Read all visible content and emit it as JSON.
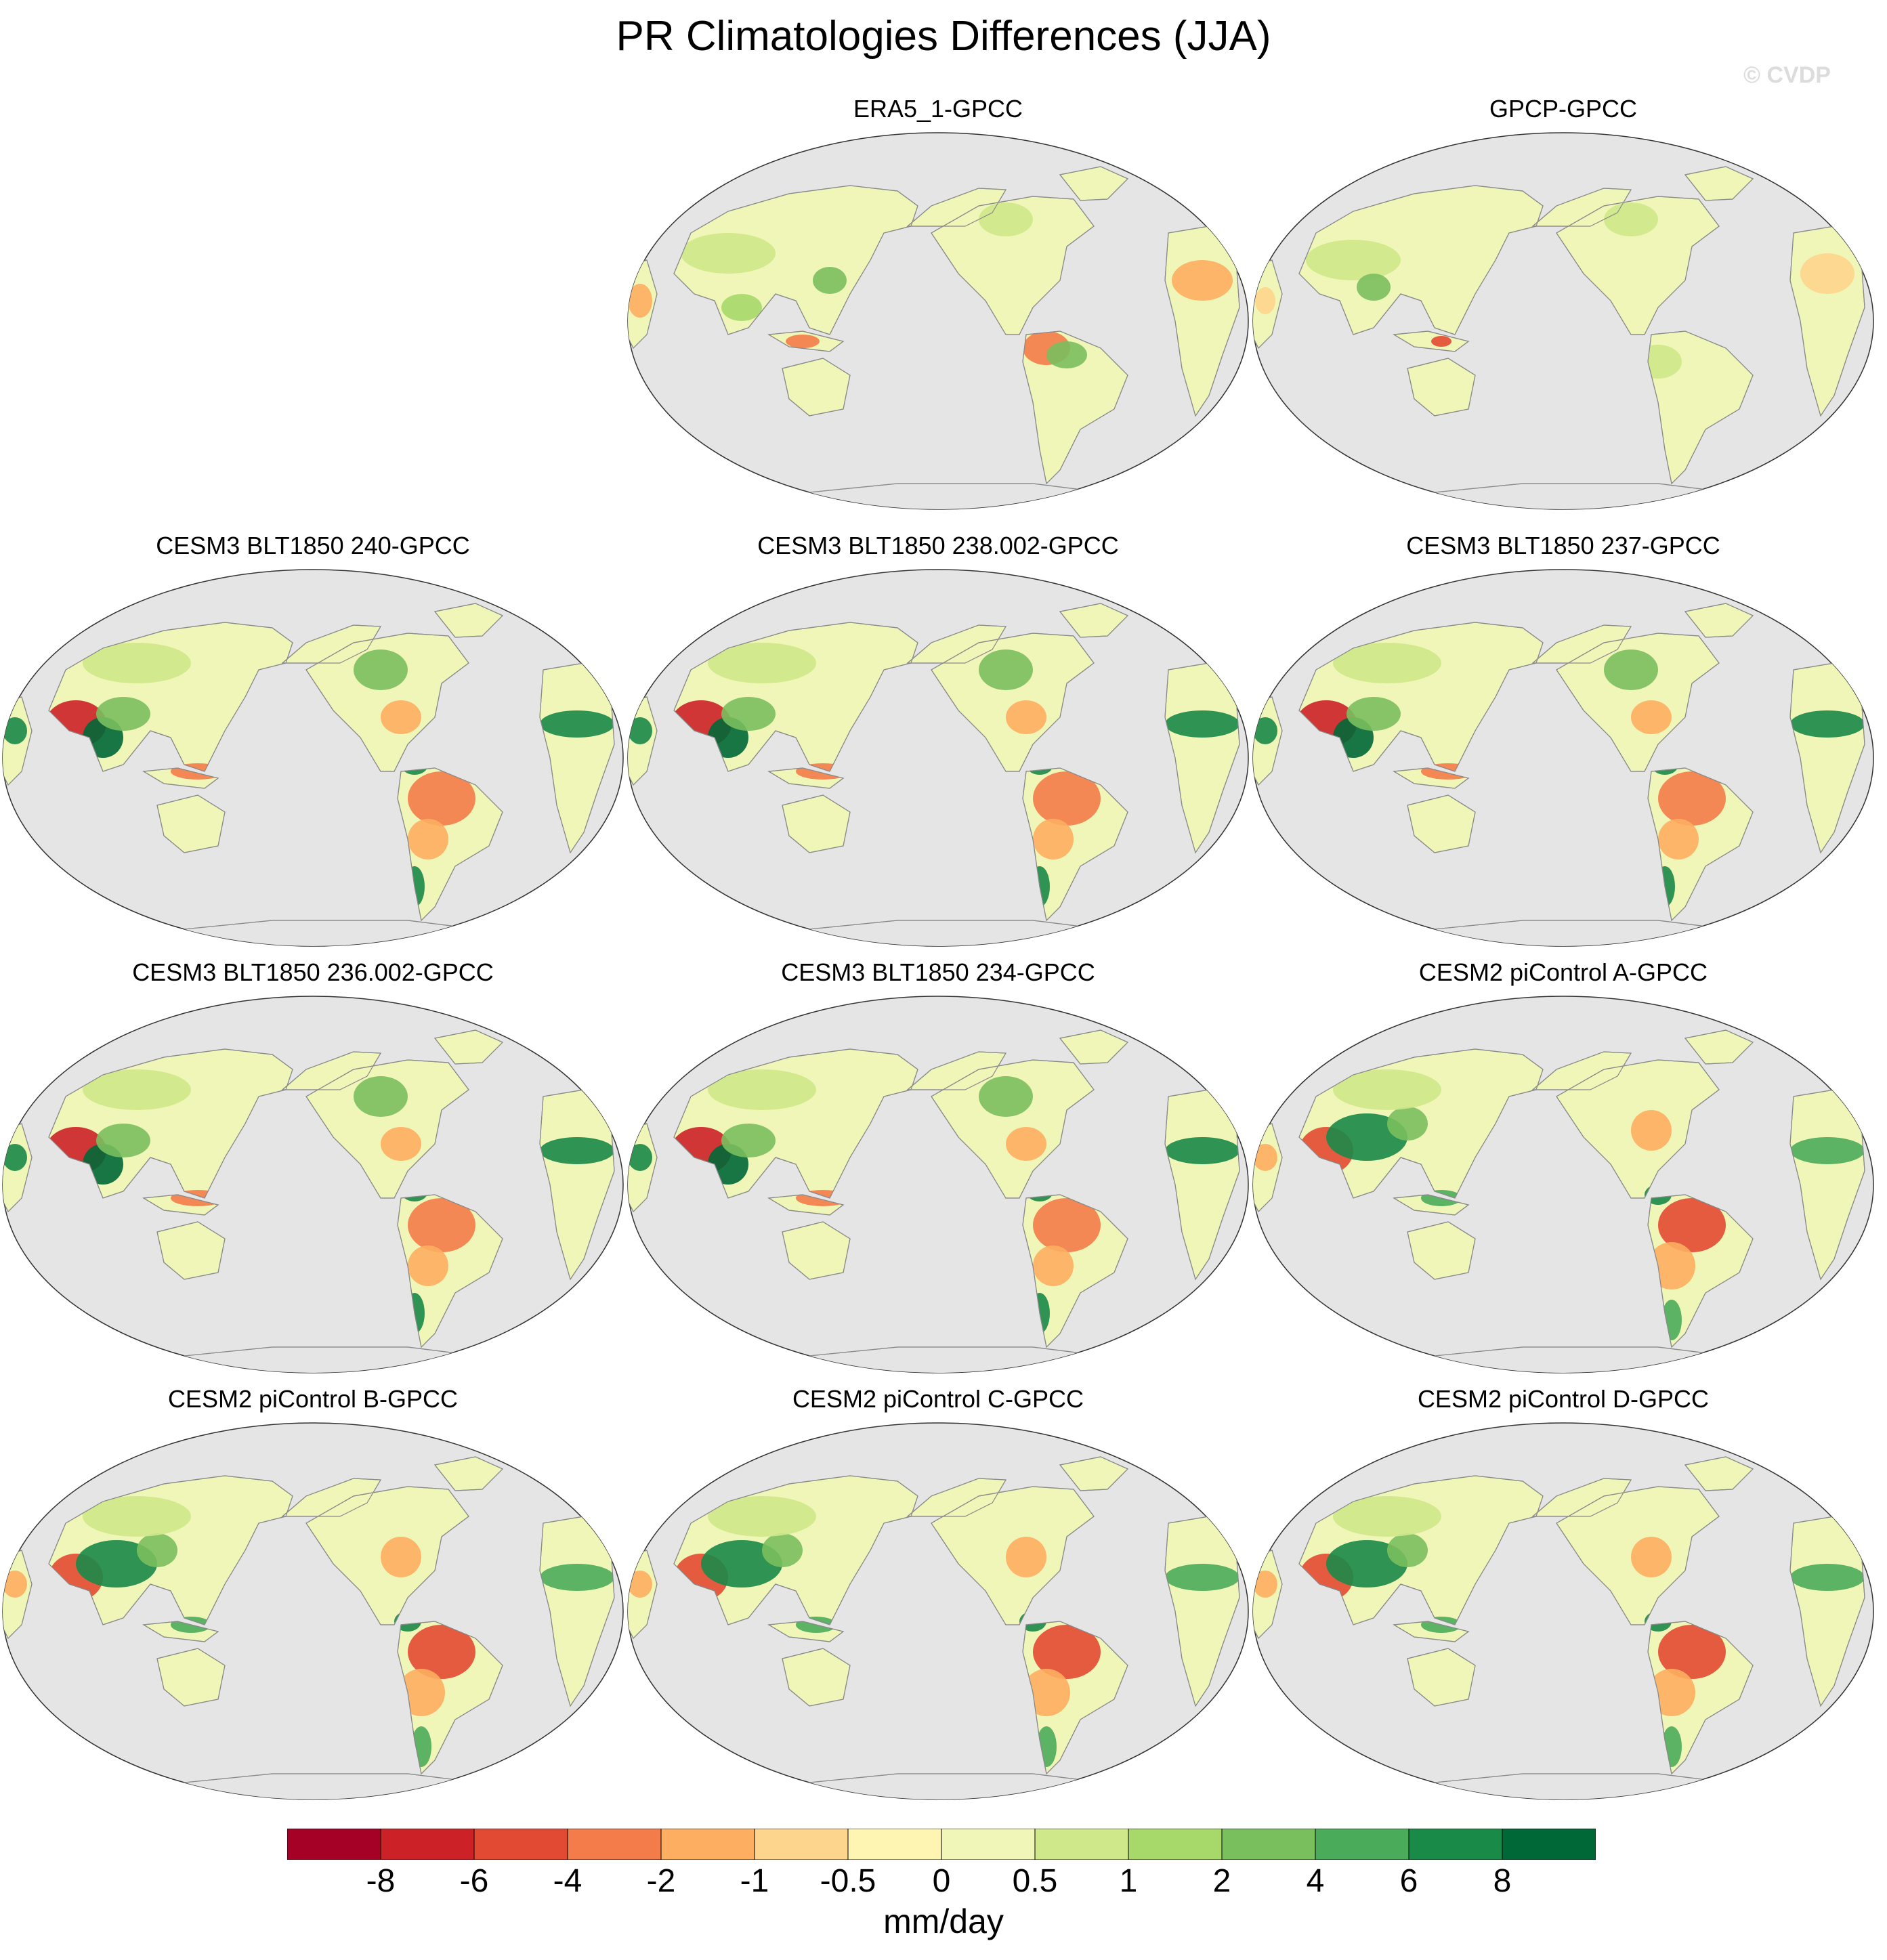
{
  "title": "PR Climatologies Differences (JJA)",
  "watermark": "© CVDP",
  "colors": {
    "ocean": "#e5e5e5",
    "coast": "#8a8a8a",
    "scale": [
      "#a50026",
      "#cc2127",
      "#e34a33",
      "#f47c4a",
      "#fdae61",
      "#fdd58c",
      "#fef5b2",
      "#f0f6b7",
      "#cfe88a",
      "#a6d96a",
      "#7abf5e",
      "#4aac5a",
      "#1a8a48",
      "#006837"
    ]
  },
  "colorbar": {
    "labels": [
      "-8",
      "-6",
      "-4",
      "-2",
      "-1",
      "-0.5",
      "0",
      "0.5",
      "1",
      "2",
      "4",
      "6",
      "8"
    ],
    "units": "mm/day"
  },
  "panels": [
    {
      "title": "ERA5_1-GPCC",
      "style": "era"
    },
    {
      "title": "GPCP-GPCC",
      "style": "gpcp"
    },
    {
      "title": "CESM3 BLT1850 240-GPCC",
      "style": "model"
    },
    {
      "title": "CESM3 BLT1850 238.002-GPCC",
      "style": "model"
    },
    {
      "title": "CESM3 BLT1850 237-GPCC",
      "style": "model"
    },
    {
      "title": "CESM3 BLT1850 236.002-GPCC",
      "style": "model"
    },
    {
      "title": "CESM3 BLT1850 234-GPCC",
      "style": "model"
    },
    {
      "title": "CESM2 piControl A-GPCC",
      "style": "cesm2"
    },
    {
      "title": "CESM2 piControl B-GPCC",
      "style": "cesm2"
    },
    {
      "title": "CESM2 piControl C-GPCC",
      "style": "cesm2"
    },
    {
      "title": "CESM2 piControl D-GPCC",
      "style": "cesm2"
    }
  ]
}
